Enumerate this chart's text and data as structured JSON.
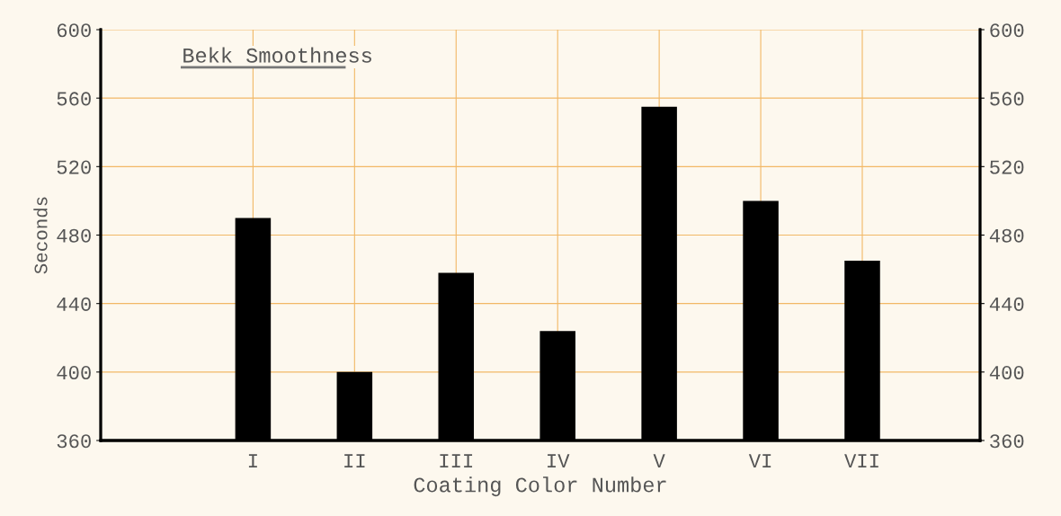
{
  "chart_data": {
    "type": "bar",
    "title": "Bekk Smoothness",
    "xlabel": "Coating Color Number",
    "ylabel": "Seconds",
    "categories": [
      "I",
      "II",
      "III",
      "IV",
      "V",
      "VI",
      "VII"
    ],
    "values": [
      490,
      400,
      458,
      424,
      555,
      500,
      465
    ],
    "color": "#000000",
    "ylim": [
      360,
      600
    ],
    "yticks": [
      360,
      400,
      440,
      480,
      520,
      560,
      600
    ],
    "y2lim": [
      360,
      600
    ],
    "y2ticks": [
      360,
      400,
      440,
      480,
      520,
      560,
      600
    ],
    "grid": true
  }
}
